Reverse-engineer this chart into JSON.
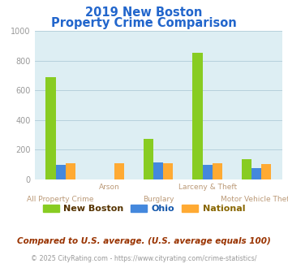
{
  "title_line1": "2019 New Boston",
  "title_line2": "Property Crime Comparison",
  "title_color": "#2266cc",
  "categories": [
    "All Property Crime",
    "Arson",
    "Burglary",
    "Larceny & Theft",
    "Motor Vehicle Theft"
  ],
  "new_boston": [
    690,
    0,
    275,
    855,
    135
  ],
  "ohio": [
    100,
    0,
    115,
    100,
    75
  ],
  "national": [
    110,
    110,
    110,
    110,
    105
  ],
  "colors": {
    "new_boston": "#88cc22",
    "ohio": "#4488dd",
    "national": "#ffaa33"
  },
  "ylim": [
    0,
    1000
  ],
  "yticks": [
    0,
    200,
    400,
    600,
    800,
    1000
  ],
  "plot_bg": "#ddeef3",
  "grid_color": "#b0ccd8",
  "bar_width": 0.2,
  "legend_labels": [
    "New Boston",
    "Ohio",
    "National"
  ],
  "legend_colors": [
    "#88cc22",
    "#4488dd",
    "#ffaa33"
  ],
  "legend_text_colors": [
    "#553300",
    "#553300",
    "#553300"
  ],
  "footnote_line1": "Compared to U.S. average. (U.S. average equals 100)",
  "footnote_line2": "© 2025 CityRating.com - https://www.cityrating.com/crime-statistics/",
  "footnote_color1": "#993300",
  "footnote_color2": "#999999",
  "xlabel_color": "#bb9977",
  "ytick_label_color": "#999999"
}
